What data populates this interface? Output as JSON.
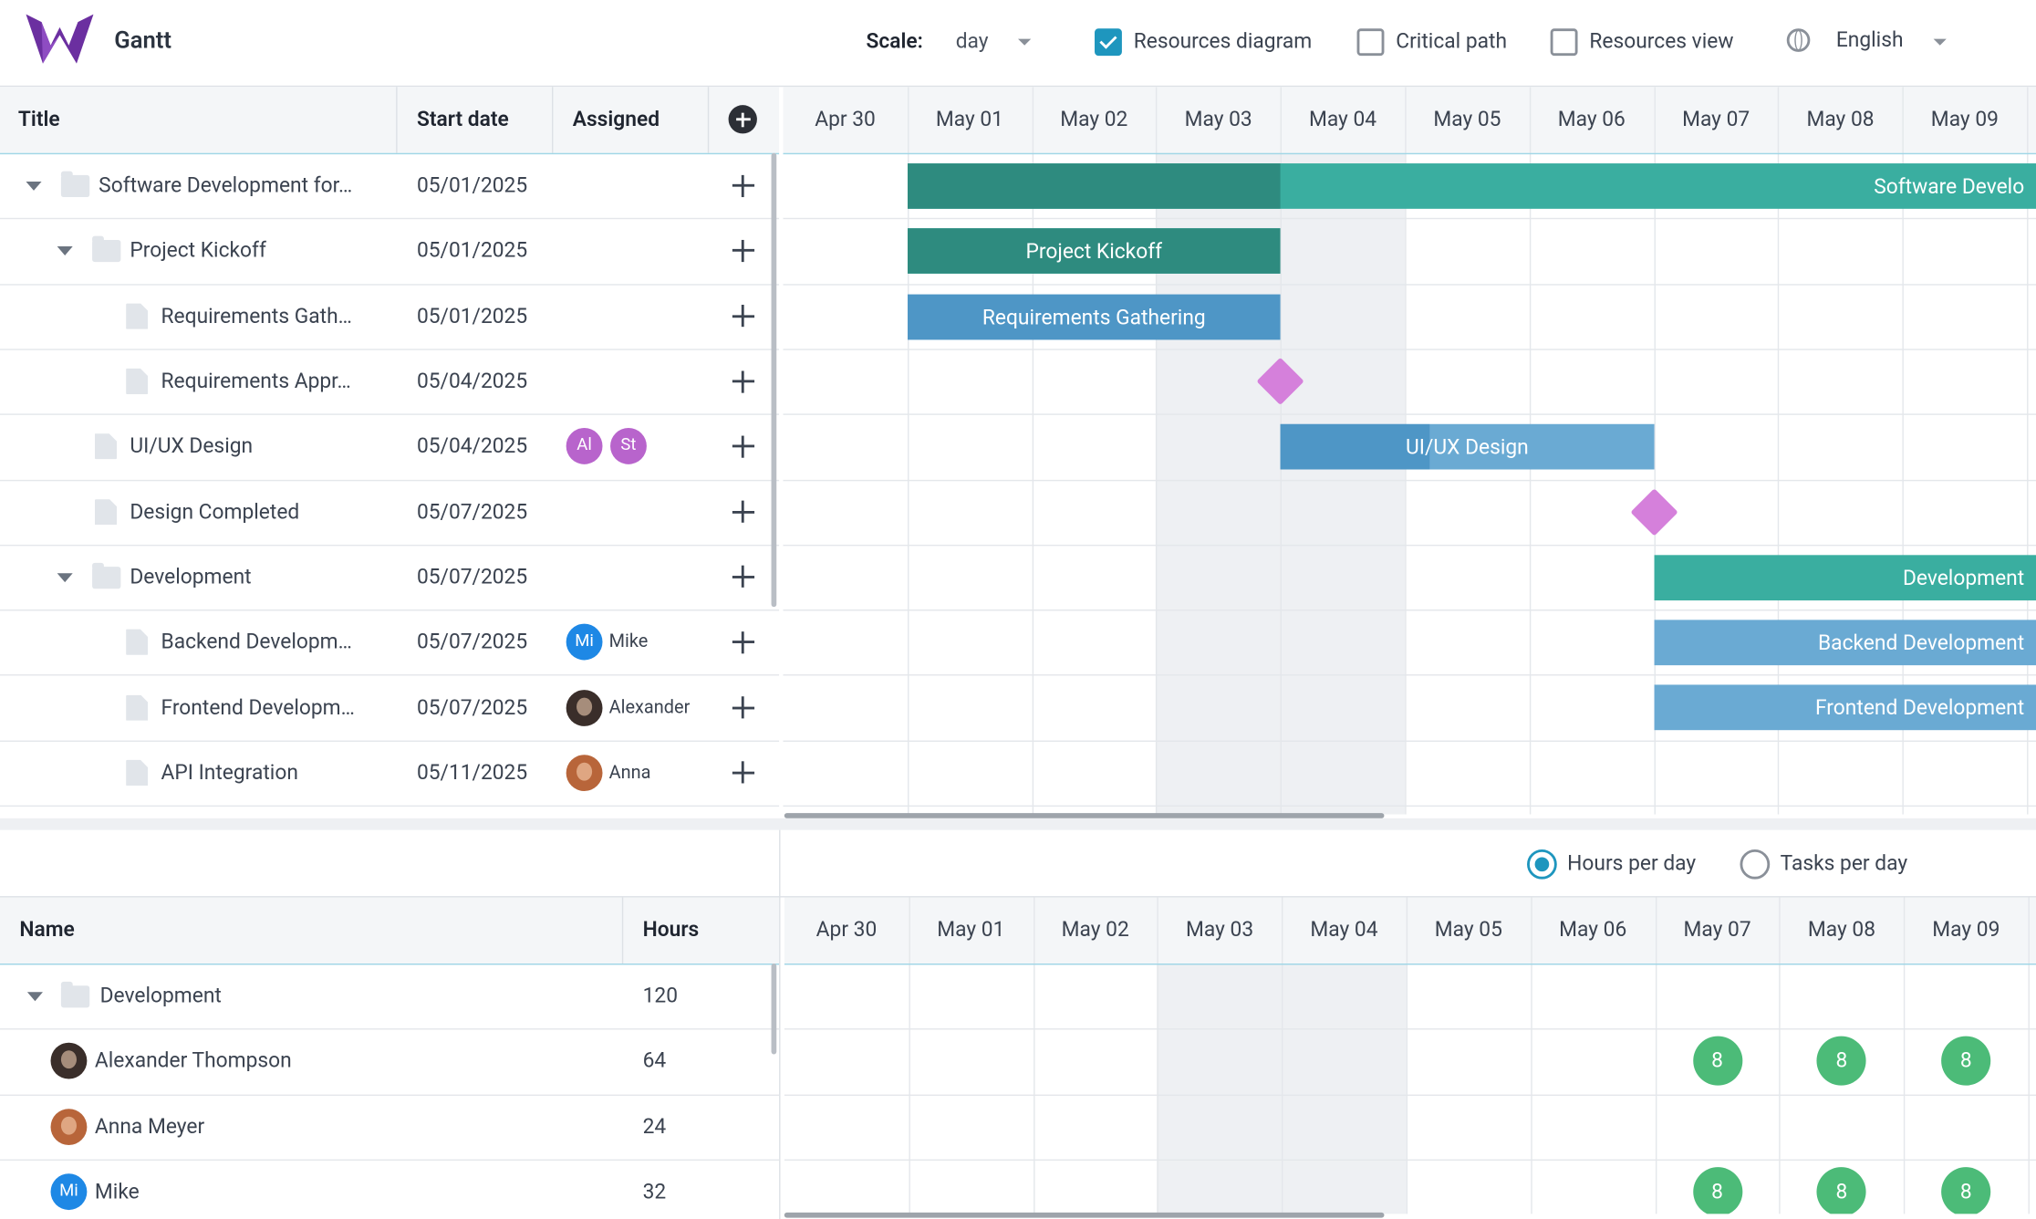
{
  "header": {
    "app_name": "Gantt",
    "scale_label": "Scale:",
    "scale_value": "day",
    "options": [
      {
        "label": "Resources diagram",
        "checked": true
      },
      {
        "label": "Critical path",
        "checked": false
      },
      {
        "label": "Resources view",
        "checked": false
      }
    ],
    "language": "English"
  },
  "tasks": {
    "columns": [
      "Title",
      "Start date",
      "Assigned"
    ],
    "rows": [
      {
        "title": "Software Development for…",
        "start_date": "05/01/2025",
        "level": 0,
        "kind": "project",
        "assigned": [],
        "bar_label": "Software Develo",
        "duration": 15,
        "progress": 0.2
      },
      {
        "title": "Project Kickoff",
        "start_date": "05/01/2025",
        "level": 1,
        "kind": "project",
        "assigned": [],
        "bar_label": "Project Kickoff",
        "duration": 3,
        "progress": 1
      },
      {
        "title": "Requirements Gath…",
        "start_date": "05/01/2025",
        "level": 2,
        "kind": "task",
        "assigned": [],
        "bar_label": "Requirements Gathering",
        "duration": 3,
        "progress": 1
      },
      {
        "title": "Requirements Appr…",
        "start_date": "05/04/2025",
        "level": 2,
        "kind": "milestone",
        "assigned": []
      },
      {
        "title": "UI/UX Design",
        "start_date": "05/04/2025",
        "level": 1,
        "kind": "task",
        "assigned": [
          {
            "initials": "Al",
            "color": "#b864cc"
          },
          {
            "initials": "St",
            "color": "#b864cc"
          }
        ],
        "bar_label": "UI/UX Design",
        "duration": 3,
        "progress": 0.4
      },
      {
        "title": "Design Completed",
        "start_date": "05/07/2025",
        "level": 1,
        "kind": "milestone",
        "assigned": []
      },
      {
        "title": "Development",
        "start_date": "05/07/2025",
        "level": 1,
        "kind": "project",
        "assigned": [],
        "bar_label": "Development",
        "duration": 8,
        "progress": 0
      },
      {
        "title": "Backend Developm…",
        "start_date": "05/07/2025",
        "level": 2,
        "kind": "task",
        "assigned": [
          {
            "initials": "Mi",
            "name": "Mike",
            "color": "#1e88e5"
          }
        ],
        "bar_label": "Backend Development",
        "duration": 5,
        "progress": 0
      },
      {
        "title": "Frontend Developm…",
        "start_date": "05/07/2025",
        "level": 2,
        "kind": "task",
        "assigned": [
          {
            "name": "Alexander",
            "color": "#3a2e2a"
          }
        ],
        "bar_label": "Frontend Development",
        "duration": 5,
        "progress": 0
      },
      {
        "title": "API Integration",
        "start_date": "05/11/2025",
        "level": 2,
        "kind": "task",
        "assigned": [
          {
            "name": "Anna",
            "color": "#b8653a"
          }
        ]
      }
    ]
  },
  "timeline": {
    "dates": [
      "Apr 30",
      "May 01",
      "May 02",
      "May 03",
      "May 04",
      "May 05",
      "May 06",
      "May 07",
      "May 08",
      "May 09"
    ]
  },
  "resources": {
    "modes": [
      {
        "label": "Hours per day",
        "selected": true
      },
      {
        "label": "Tasks per day",
        "selected": false
      }
    ],
    "columns": [
      "Name",
      "Hours"
    ],
    "rows": [
      {
        "name": "Development",
        "hours": 120,
        "kind": "group"
      },
      {
        "name": "Alexander Thompson",
        "hours": 64,
        "kind": "person",
        "avatar": {
          "color": "#3a2e2a"
        },
        "load": [
          null,
          null,
          null,
          null,
          null,
          null,
          null,
          8,
          8,
          8
        ]
      },
      {
        "name": "Anna Meyer",
        "hours": 24,
        "kind": "person",
        "avatar": {
          "color": "#b8653a"
        },
        "load": [
          null,
          null,
          null,
          null,
          null,
          null,
          null,
          null,
          null,
          null
        ]
      },
      {
        "name": "Mike",
        "hours": 32,
        "kind": "person",
        "avatar": {
          "initials": "Mi",
          "color": "#1e88e5"
        },
        "load": [
          null,
          null,
          null,
          null,
          null,
          null,
          null,
          8,
          8,
          8
        ]
      }
    ]
  }
}
